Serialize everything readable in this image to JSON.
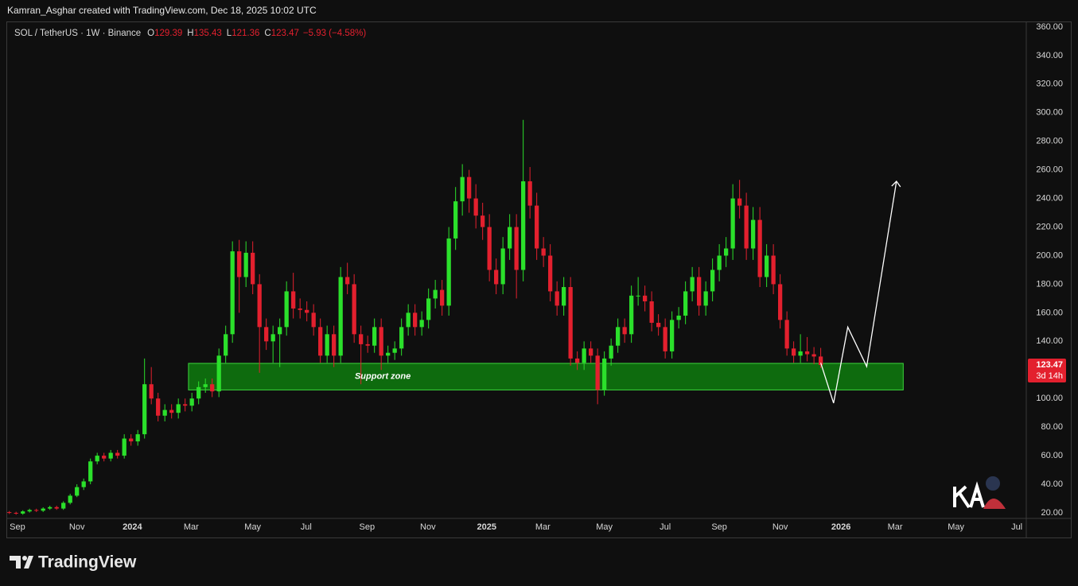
{
  "header": "Kamran_Asghar created with TradingView.com, Dec 18, 2025 10:02 UTC",
  "footer": "TradingView",
  "chart_data": {
    "type": "candlestick",
    "title": "SOL / TetherUS · 1W · Binance",
    "ohlc_keys": [
      "O",
      "H",
      "L",
      "C"
    ],
    "change_label": "−5.93 (−4.58%)",
    "countdown": "3d 14h",
    "up_color": "#2be02b",
    "down_color": "#e3202e",
    "open": [
      20.5,
      20,
      19.5,
      21,
      22,
      21.5,
      23,
      24,
      23,
      27,
      32,
      38,
      42,
      56,
      60,
      58,
      62,
      60,
      72,
      70,
      75,
      110,
      100,
      88,
      92,
      90,
      96,
      95,
      100,
      108,
      110,
      105,
      130,
      145,
      203,
      185,
      202,
      180,
      150,
      140,
      145,
      150,
      175,
      163,
      162,
      160,
      150,
      130,
      145,
      130,
      185,
      180,
      145,
      138,
      137,
      150,
      130,
      132,
      135,
      150,
      160,
      150,
      155,
      170,
      176,
      165,
      212,
      238,
      255,
      240,
      228,
      220,
      190,
      180,
      205,
      220,
      190,
      252,
      235,
      205,
      200,
      175,
      165,
      178,
      128,
      125,
      135,
      130,
      106,
      128,
      137,
      150,
      145,
      172,
      172,
      168,
      153,
      150,
      133,
      155,
      158,
      175,
      185,
      165,
      175,
      190,
      200,
      205,
      240,
      235,
      205,
      225,
      185,
      200,
      180,
      155,
      135,
      130,
      133,
      131,
      129.39
    ],
    "high": [
      21.3,
      20.8,
      21.8,
      22.9,
      22.9,
      23.9,
      25,
      25,
      28.1,
      33.3,
      40,
      44,
      58,
      62,
      62,
      64,
      64,
      75,
      75,
      78,
      128,
      122,
      104,
      96,
      96,
      100,
      100,
      104,
      112,
      114,
      114,
      135,
      151,
      210,
      211,
      210,
      210,
      187,
      156,
      151,
      156,
      182,
      188,
      170,
      168,
      166,
      156,
      151,
      151,
      192,
      195,
      187,
      151,
      144,
      156,
      156,
      137,
      140,
      156,
      166,
      166,
      161,
      177,
      183,
      183,
      220,
      248,
      264,
      260,
      250,
      237,
      229,
      198,
      213,
      229,
      229,
      295,
      262,
      244,
      213,
      208,
      182,
      185,
      185,
      133,
      140,
      140,
      135,
      133,
      142,
      156,
      156,
      179,
      185,
      179,
      175,
      159,
      156,
      161,
      164,
      182,
      192,
      192,
      182,
      198,
      208,
      213,
      250,
      253,
      244,
      234,
      234,
      208,
      208,
      187,
      161,
      140,
      145,
      143,
      136,
      135.43
    ],
    "low": [
      19.2,
      18.7,
      18.7,
      20.2,
      20.6,
      20.6,
      22.1,
      22.1,
      22.1,
      25.9,
      31,
      36,
      40,
      54,
      56,
      56,
      58,
      58,
      67,
      67,
      72,
      96,
      84,
      84,
      86,
      86,
      91,
      91,
      96,
      104,
      101,
      101,
      125,
      139,
      160,
      178,
      173,
      118,
      134,
      125,
      122,
      144,
      156,
      156,
      154,
      144,
      125,
      125,
      122,
      125,
      173,
      139,
      110,
      132,
      132,
      120,
      125,
      127,
      130,
      144,
      144,
      144,
      149,
      163,
      158,
      158,
      204,
      228,
      230,
      219,
      211,
      182,
      173,
      173,
      197,
      170,
      182,
      226,
      197,
      192,
      168,
      158,
      158,
      123,
      120,
      120,
      125,
      96,
      102,
      123,
      132,
      139,
      139,
      165,
      161,
      147,
      144,
      128,
      128,
      149,
      152,
      168,
      158,
      158,
      168,
      182,
      192,
      197,
      226,
      197,
      197,
      178,
      178,
      173,
      149,
      130,
      125,
      125,
      126,
      124,
      121.36
    ],
    "close": [
      20,
      19.5,
      21,
      22,
      21.5,
      23,
      24,
      23,
      27,
      32,
      38,
      42,
      56,
      60,
      58,
      62,
      60,
      72,
      70,
      75,
      110,
      100,
      88,
      92,
      90,
      96,
      95,
      100,
      108,
      110,
      105,
      130,
      145,
      203,
      185,
      202,
      180,
      150,
      140,
      145,
      150,
      175,
      163,
      162,
      160,
      150,
      130,
      145,
      130,
      185,
      180,
      145,
      138,
      137,
      150,
      130,
      132,
      135,
      150,
      160,
      150,
      155,
      170,
      176,
      165,
      212,
      238,
      255,
      240,
      228,
      220,
      190,
      180,
      205,
      220,
      190,
      252,
      235,
      205,
      200,
      175,
      165,
      178,
      128,
      125,
      135,
      130,
      106,
      128,
      137,
      150,
      145,
      172,
      172,
      168,
      153,
      150,
      133,
      155,
      158,
      175,
      185,
      165,
      175,
      190,
      200,
      205,
      240,
      235,
      205,
      225,
      185,
      200,
      180,
      155,
      135,
      130,
      133,
      131,
      129.39,
      123.47
    ],
    "xlim": [
      -0.2,
      150.4
    ],
    "xticks": [
      {
        "value": 1.2,
        "label": "Sep"
      },
      {
        "value": 10,
        "label": "Nov"
      },
      {
        "value": 18.2,
        "label": "2024"
      },
      {
        "value": 26.9,
        "label": "Mar"
      },
      {
        "value": 36,
        "label": "May"
      },
      {
        "value": 43.9,
        "label": "Jul"
      },
      {
        "value": 52.9,
        "label": "Sep"
      },
      {
        "value": 61.9,
        "label": "Nov"
      },
      {
        "value": 70.6,
        "label": "2025"
      },
      {
        "value": 78.9,
        "label": "Mar"
      },
      {
        "value": 88,
        "label": "May"
      },
      {
        "value": 97,
        "label": "Jul"
      },
      {
        "value": 105,
        "label": "Sep"
      },
      {
        "value": 114,
        "label": "Nov"
      },
      {
        "value": 123,
        "label": "2026"
      },
      {
        "value": 131,
        "label": "Mar"
      },
      {
        "value": 140,
        "label": "May"
      },
      {
        "value": 149,
        "label": "Jul"
      }
    ],
    "ylim": [
      16.1,
      363.3
    ],
    "yticks": [
      {
        "value": 20,
        "label": "20.00"
      },
      {
        "value": 40,
        "label": "40.00"
      },
      {
        "value": 60,
        "label": "60.00"
      },
      {
        "value": 80,
        "label": "80.00"
      },
      {
        "value": 100,
        "label": "100.00"
      },
      {
        "value": 120,
        "label": "120.00"
      },
      {
        "value": 140,
        "label": "140.00"
      },
      {
        "value": 160,
        "label": "160.00"
      },
      {
        "value": 180,
        "label": "180.00"
      },
      {
        "value": 200,
        "label": "200.00"
      },
      {
        "value": 220,
        "label": "220.00"
      },
      {
        "value": 240,
        "label": "240.00"
      },
      {
        "value": 260,
        "label": "260.00"
      },
      {
        "value": 280,
        "label": "280.00"
      },
      {
        "value": 300,
        "label": "300.00"
      },
      {
        "value": 320,
        "label": "320.00"
      },
      {
        "value": 340,
        "label": "340.00"
      },
      {
        "value": 360,
        "label": "360.00"
      }
    ],
    "zone": {
      "label": "Support zone",
      "low": 106,
      "high": 124.6,
      "x": [
        26.5,
        132.2
      ],
      "color": "#0e6b0e"
    },
    "projection": {
      "x": [
        120,
        121.9,
        124,
        126.8,
        131.2
      ],
      "y": [
        125,
        96.8,
        150,
        122.4,
        252
      ],
      "color": "#ffffff"
    }
  }
}
